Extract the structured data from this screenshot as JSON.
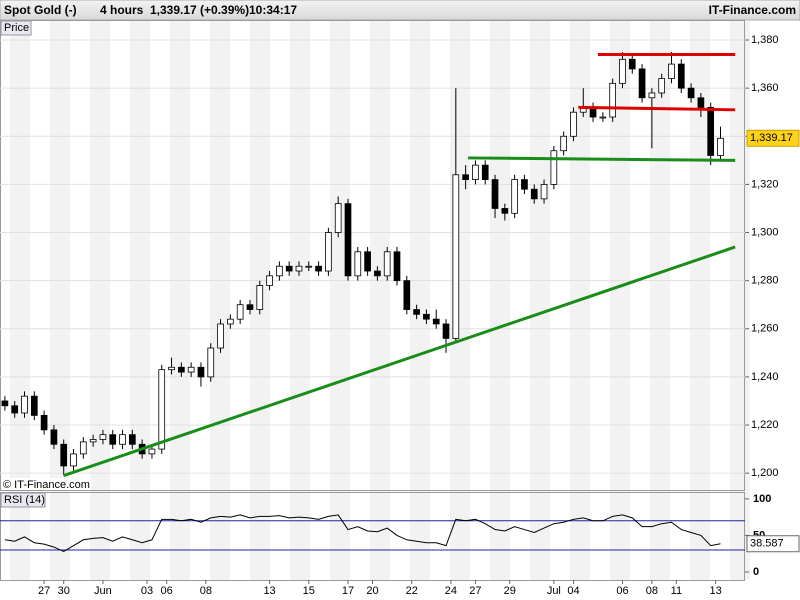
{
  "chart_data": {
    "type": "candlestick",
    "header": {
      "instrument": "Spot Gold (-)",
      "interval": "4 hours",
      "quote": "1,339.17 (+0.39%)",
      "time": "10:34:17",
      "brand": "IT-Finance.com"
    },
    "panel_label": "Price",
    "copyright": "© IT-Finance.com",
    "x": [
      1,
      3,
      5,
      7,
      9,
      11,
      13,
      15,
      17,
      19,
      21,
      23,
      25,
      27,
      29,
      31,
      33,
      35,
      37,
      39,
      41,
      43,
      45,
      47,
      49,
      51,
      53,
      55,
      57,
      59,
      61,
      63,
      65,
      67,
      69,
      71,
      73,
      75,
      77,
      79,
      81,
      83,
      85,
      87,
      89,
      91,
      93,
      95,
      97,
      99,
      101,
      103,
      105,
      107,
      109,
      111,
      113,
      115,
      117,
      119,
      121,
      123,
      125,
      127,
      129,
      131,
      133,
      135,
      137,
      139,
      141,
      143,
      145,
      147
    ],
    "open": [
      1230,
      1228,
      1225,
      1232,
      1224,
      1218,
      1212,
      1203,
      1208,
      1213,
      1214,
      1216,
      1212,
      1216,
      1212,
      1208,
      1210,
      1243,
      1244,
      1242,
      1244,
      1240,
      1252,
      1262,
      1264,
      1270,
      1268,
      1278,
      1282,
      1286,
      1284,
      1286,
      1286,
      1284,
      1300,
      1312,
      1282,
      1292,
      1284,
      1282,
      1292,
      1280,
      1268,
      1266,
      1264,
      1262,
      1256,
      1324,
      1322,
      1328,
      1322,
      1310,
      1308,
      1322,
      1318,
      1314,
      1320,
      1334,
      1340,
      1350,
      1352,
      1348,
      1348,
      1362,
      1372,
      1368,
      1356,
      1358,
      1364,
      1370,
      1360,
      1356,
      1352,
      1332
    ],
    "high": [
      1232,
      1230,
      1234,
      1234,
      1226,
      1220,
      1214,
      1210,
      1215,
      1216,
      1218,
      1218,
      1218,
      1218,
      1214,
      1212,
      1245,
      1248,
      1246,
      1246,
      1246,
      1254,
      1264,
      1266,
      1272,
      1272,
      1280,
      1284,
      1288,
      1288,
      1288,
      1288,
      1288,
      1302,
      1315,
      1314,
      1294,
      1294,
      1286,
      1294,
      1294,
      1282,
      1270,
      1268,
      1268,
      1264,
      1360,
      1328,
      1330,
      1330,
      1324,
      1312,
      1324,
      1324,
      1320,
      1322,
      1336,
      1342,
      1352,
      1360,
      1354,
      1350,
      1364,
      1375,
      1374,
      1370,
      1360,
      1366,
      1375,
      1372,
      1362,
      1358,
      1354,
      1344
    ],
    "low": [
      1226,
      1223,
      1223,
      1222,
      1216,
      1210,
      1199,
      1201,
      1206,
      1211,
      1212,
      1210,
      1210,
      1210,
      1206,
      1206,
      1208,
      1241,
      1240,
      1240,
      1236,
      1238,
      1250,
      1260,
      1262,
      1266,
      1266,
      1276,
      1280,
      1282,
      1282,
      1284,
      1282,
      1282,
      1298,
      1280,
      1280,
      1282,
      1280,
      1280,
      1278,
      1266,
      1264,
      1262,
      1260,
      1250,
      1254,
      1318,
      1320,
      1320,
      1306,
      1305,
      1306,
      1316,
      1312,
      1312,
      1318,
      1332,
      1338,
      1348,
      1346,
      1346,
      1346,
      1360,
      1366,
      1354,
      1335,
      1356,
      1362,
      1358,
      1354,
      1348,
      1328,
      1330
    ],
    "close": [
      1228,
      1225,
      1232,
      1224,
      1218,
      1212,
      1203,
      1208,
      1213,
      1214,
      1216,
      1212,
      1216,
      1212,
      1208,
      1210,
      1243,
      1244,
      1242,
      1244,
      1240,
      1252,
      1262,
      1264,
      1270,
      1268,
      1278,
      1282,
      1286,
      1284,
      1286,
      1286,
      1284,
      1300,
      1312,
      1282,
      1292,
      1284,
      1282,
      1292,
      1280,
      1268,
      1266,
      1264,
      1262,
      1256,
      1324,
      1322,
      1328,
      1322,
      1310,
      1308,
      1322,
      1318,
      1314,
      1320,
      1334,
      1340,
      1350,
      1352,
      1348,
      1348,
      1362,
      1372,
      1368,
      1356,
      1358,
      1364,
      1370,
      1360,
      1356,
      1352,
      1332,
      1339.17
    ],
    "last_label": "1,339.17",
    "up_color": "#ffffff",
    "down_color": "#000000",
    "xlim": [
      0,
      152
    ],
    "xticks": [
      {
        "value": 9,
        "label": "27"
      },
      {
        "value": 13,
        "label": "30"
      },
      {
        "value": 21,
        "label": "Jun"
      },
      {
        "value": 30,
        "label": "03"
      },
      {
        "value": 34,
        "label": "06"
      },
      {
        "value": 42,
        "label": "08"
      },
      {
        "value": 55,
        "label": "13"
      },
      {
        "value": 63,
        "label": "15"
      },
      {
        "value": 71,
        "label": "17"
      },
      {
        "value": 76,
        "label": "20"
      },
      {
        "value": 84,
        "label": "22"
      },
      {
        "value": 92,
        "label": "24"
      },
      {
        "value": 97,
        "label": "27"
      },
      {
        "value": 104,
        "label": "29"
      },
      {
        "value": 113,
        "label": "Jul"
      },
      {
        "value": 117,
        "label": "04"
      },
      {
        "value": 127,
        "label": "06"
      },
      {
        "value": 133,
        "label": "08"
      },
      {
        "value": 138,
        "label": "11"
      },
      {
        "value": 146,
        "label": "13"
      }
    ],
    "ylim": [
      1193,
      1385
    ],
    "yticks": [
      {
        "value": 1200,
        "label": "1,200"
      },
      {
        "value": 1220,
        "label": "1,220"
      },
      {
        "value": 1240,
        "label": "1,240"
      },
      {
        "value": 1260,
        "label": "1,260"
      },
      {
        "value": 1280,
        "label": "1,280"
      },
      {
        "value": 1300,
        "label": "1,300"
      },
      {
        "value": 1320,
        "label": "1,320"
      },
      {
        "value": 1340,
        "label": "1,340"
      },
      {
        "value": 1360,
        "label": "1,360"
      },
      {
        "value": 1380,
        "label": "1,380"
      }
    ],
    "grid": true,
    "trendlines": [
      {
        "color": "#e00000",
        "x": [
          122,
          150
        ],
        "y": [
          1374,
          1374
        ]
      },
      {
        "color": "#e00000",
        "x": [
          118,
          150
        ],
        "y": [
          1352,
          1351
        ]
      },
      {
        "color": "#1a8c1a",
        "x": [
          95.5,
          150
        ],
        "y": [
          1331,
          1330
        ]
      },
      {
        "color": "#1a8c1a",
        "x": [
          13,
          150
        ],
        "y": [
          1199,
          1294
        ]
      }
    ],
    "rsi": {
      "name": "RSI (14)",
      "color": "#000000",
      "level_color": "#2020a0",
      "values": [
        44,
        42,
        48,
        40,
        38,
        34,
        28,
        36,
        44,
        46,
        47,
        42,
        48,
        44,
        40,
        44,
        72,
        72,
        70,
        72,
        68,
        74,
        76,
        75,
        78,
        74,
        76,
        76,
        77,
        74,
        75,
        74,
        72,
        76,
        78,
        58,
        62,
        56,
        55,
        60,
        50,
        44,
        42,
        40,
        40,
        36,
        72,
        70,
        72,
        66,
        58,
        56,
        62,
        58,
        54,
        60,
        66,
        68,
        72,
        74,
        70,
        70,
        76,
        78,
        74,
        62,
        62,
        66,
        68,
        58,
        54,
        50,
        36,
        38.587
      ],
      "last_label": "38.587",
      "ylim": [
        -11,
        108
      ],
      "yticks": [
        0,
        50,
        100
      ],
      "levels": [
        30,
        70
      ]
    }
  }
}
